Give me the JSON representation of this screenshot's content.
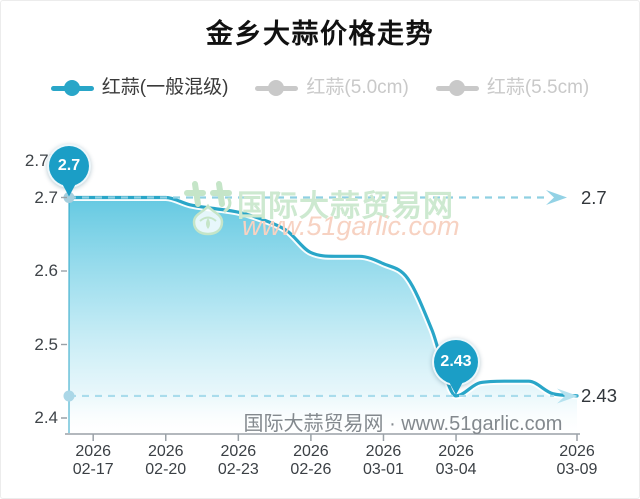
{
  "title": "金乡大蒜价格走势",
  "legend": {
    "items": [
      {
        "label": "红蒜(一般混级)",
        "active": true
      },
      {
        "label": "红蒜(5.0cm)",
        "active": false
      },
      {
        "label": "红蒜(5.5cm)",
        "active": false
      }
    ]
  },
  "watermark": {
    "logo": "garlic-logo",
    "site_name": "国际大蒜贸易网",
    "site_url": "www.51garlic.com",
    "footer": "国际大蒜贸易网 · www.51garlic.com"
  },
  "chart_data": {
    "type": "area",
    "title": "金乡大蒜价格走势",
    "x": [
      "2026-02-16",
      "2026-02-17",
      "2026-02-18",
      "2026-02-19",
      "2026-02-20",
      "2026-02-21",
      "2026-02-22",
      "2026-02-23",
      "2026-02-24",
      "2026-02-25",
      "2026-02-26",
      "2026-02-27",
      "2026-02-28",
      "2026-03-01",
      "2026-03-02",
      "2026-03-03",
      "2026-03-04",
      "2026-03-05",
      "2026-03-06",
      "2026-03-07",
      "2026-03-08",
      "2026-03-09"
    ],
    "series": [
      {
        "name": "红蒜(一般混级)",
        "values": [
          2.7,
          2.7,
          2.7,
          2.7,
          2.7,
          2.69,
          2.685,
          2.68,
          2.67,
          2.655,
          2.625,
          2.62,
          2.62,
          2.61,
          2.59,
          2.52,
          2.43,
          2.448,
          2.45,
          2.45,
          2.433,
          2.43
        ]
      }
    ],
    "hidden_series": [
      "红蒜(5.0cm)",
      "红蒜(5.5cm)"
    ],
    "ylim": [
      2.38,
      2.755
    ],
    "y_ticks": [
      2.4,
      2.5,
      2.6,
      2.7,
      2.75
    ],
    "x_ticks": [
      {
        "year": "2026",
        "date": "02-17"
      },
      {
        "year": "2026",
        "date": "02-20"
      },
      {
        "year": "2026",
        "date": "02-23"
      },
      {
        "year": "2026",
        "date": "02-26"
      },
      {
        "year": "2026",
        "date": "03-01"
      },
      {
        "year": "2026",
        "date": "03-04"
      },
      {
        "year": "2026",
        "date": "03-09"
      }
    ],
    "reference_lines": [
      {
        "value": 2.7,
        "label": "2.7"
      },
      {
        "value": 2.43,
        "label": "2.43"
      }
    ],
    "point_markers": [
      {
        "x": "2026-02-16",
        "value": 2.7,
        "label": "2.7"
      },
      {
        "x": "2026-03-04",
        "value": 2.43,
        "label": "2.43"
      }
    ],
    "grid": false,
    "legend_position": "top"
  },
  "colors": {
    "accent": "#29a6c8",
    "pin": "#1b9ec6",
    "inactive": "#c9c9c9",
    "legend_text_active": "#3a3a3a",
    "legend_text_inactive": "#c9c9c9",
    "dash_high": "#8fd0e2",
    "dash_low": "#a9dcec",
    "arrow_high": "#93d2e5",
    "arrow_low": "#b6e2ef",
    "dot_high": "#a6cedd",
    "dot_low": "#abd7e7",
    "area_top": "#5cc6e0",
    "axis": "#9aa1a7"
  }
}
